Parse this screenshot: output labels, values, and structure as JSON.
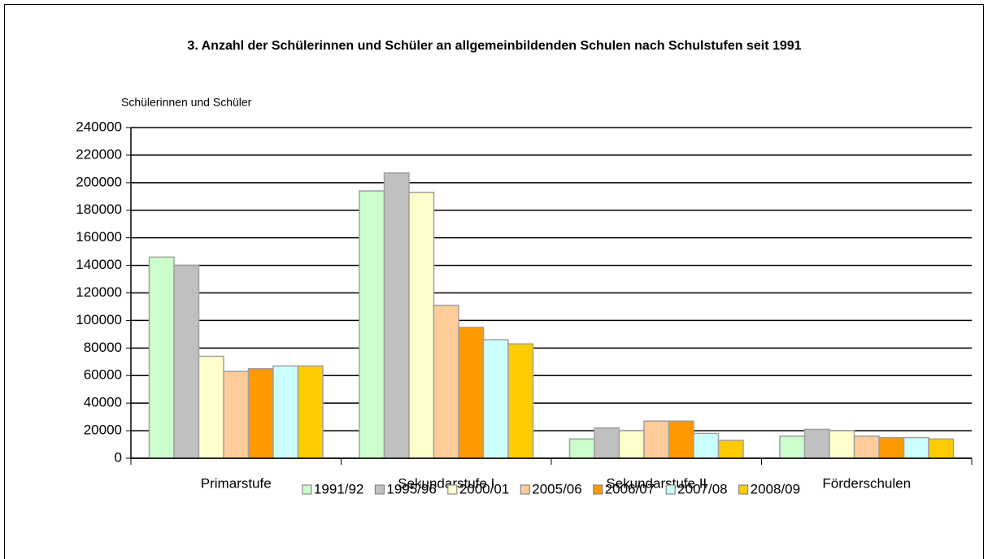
{
  "chart_data": {
    "type": "bar",
    "title": "3. Anzahl der Schülerinnen und Schüler an allgemeinbildenden Schulen nach Schulstufen seit 1991",
    "y_label": "Schülerinnen und Schüler",
    "categories": [
      "Primarstufe",
      "Sekundarstufe I",
      "Sekundarstufe II",
      "Förderschulen"
    ],
    "series": [
      {
        "name": "1991/92",
        "color": "#ccffcc",
        "values": [
          146000,
          194000,
          14000,
          16000
        ]
      },
      {
        "name": "1995/96",
        "color": "#c0c0c0",
        "values": [
          140000,
          207000,
          22000,
          21000
        ]
      },
      {
        "name": "2000/01",
        "color": "#ffffcc",
        "values": [
          74000,
          193000,
          20000,
          20000
        ]
      },
      {
        "name": "2005/06",
        "color": "#ffcc99",
        "values": [
          63000,
          111000,
          27000,
          16000
        ]
      },
      {
        "name": "2006/07",
        "color": "#ff9900",
        "values": [
          65000,
          95000,
          27000,
          15000
        ]
      },
      {
        "name": "2007/08",
        "color": "#ccffff",
        "values": [
          67000,
          86000,
          18000,
          15000
        ]
      },
      {
        "name": "2008/09",
        "color": "#ffcc00",
        "values": [
          67000,
          83000,
          13000,
          14000
        ]
      }
    ],
    "ylim": [
      0,
      240000
    ],
    "yticks": [
      0,
      20000,
      40000,
      60000,
      80000,
      100000,
      120000,
      140000,
      160000,
      180000,
      200000,
      220000,
      240000
    ],
    "grid": true,
    "legend": "bottom"
  }
}
